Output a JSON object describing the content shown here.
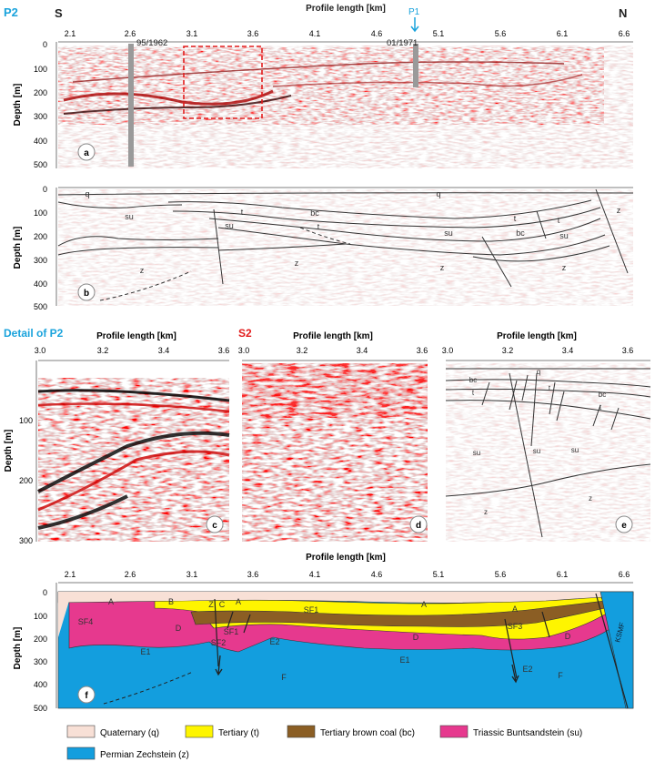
{
  "panel_a": {
    "profile": "P2",
    "south": "S",
    "north": "N",
    "xlabel": "Profile length [km]",
    "ylabel": "Depth [m]",
    "xticks": [
      "2.1",
      "2.6",
      "3.1",
      "3.6",
      "4.1",
      "4.6",
      "5.1",
      "5.6",
      "6.1",
      "6.6"
    ],
    "yticks": [
      "0",
      "100",
      "200",
      "300",
      "400",
      "500"
    ],
    "well1": "95/1962",
    "well2": "01/1971",
    "crossing": "P1",
    "letter": "a"
  },
  "panel_b": {
    "ylabel": "Depth [m]",
    "yticks": [
      "0",
      "100",
      "200",
      "300",
      "400",
      "500"
    ],
    "letter": "b",
    "units": [
      {
        "t": "q",
        "x": 96,
        "y": 216
      },
      {
        "t": "su",
        "x": 142,
        "y": 241
      },
      {
        "t": "su",
        "x": 252,
        "y": 251
      },
      {
        "t": "t",
        "x": 266,
        "y": 236
      },
      {
        "t": "bc",
        "x": 346,
        "y": 237
      },
      {
        "t": "t",
        "x": 350,
        "y": 252
      },
      {
        "t": "su",
        "x": 493,
        "y": 259
      },
      {
        "t": "q",
        "x": 482,
        "y": 216
      },
      {
        "t": "t",
        "x": 566,
        "y": 243
      },
      {
        "t": "bc",
        "x": 572,
        "y": 259
      },
      {
        "t": "t",
        "x": 614,
        "y": 245
      },
      {
        "t": "su",
        "x": 620,
        "y": 262
      },
      {
        "t": "z",
        "x": 680,
        "y": 234
      },
      {
        "t": "z",
        "x": 156,
        "y": 300
      },
      {
        "t": "z",
        "x": 326,
        "y": 292
      },
      {
        "t": "z",
        "x": 486,
        "y": 297
      },
      {
        "t": "z",
        "x": 620,
        "y": 297
      }
    ]
  },
  "panel_c": {
    "title": "Detail of P2",
    "xlabel": "Profile length [km]",
    "ylabel": "Depth [m]",
    "xticks": [
      "3.0",
      "3.2",
      "3.4",
      "3.6"
    ],
    "yticks": [
      "100",
      "200",
      "300"
    ],
    "letter": "c"
  },
  "panel_d": {
    "title": "S2",
    "xlabel": "Profile length [km]",
    "xticks": [
      "3.0",
      "3.2",
      "3.4",
      "3.6"
    ],
    "letter": "d"
  },
  "panel_e": {
    "xlabel": "Profile length [km]",
    "xticks": [
      "3.0",
      "3.2",
      "3.4",
      "3.6"
    ],
    "letter": "e",
    "units": [
      {
        "t": "q",
        "x": 592,
        "y": 411
      },
      {
        "t": "bc",
        "x": 520,
        "y": 420
      },
      {
        "t": "t",
        "x": 520,
        "y": 434
      },
      {
        "t": "t",
        "x": 604,
        "y": 429
      },
      {
        "t": "bc",
        "x": 662,
        "y": 436
      },
      {
        "t": "t",
        "x": 660,
        "y": 450
      },
      {
        "t": "su",
        "x": 524,
        "y": 500
      },
      {
        "t": "su",
        "x": 590,
        "y": 498
      },
      {
        "t": "su",
        "x": 632,
        "y": 497
      },
      {
        "t": "z",
        "x": 649,
        "y": 550
      },
      {
        "t": "z",
        "x": 534,
        "y": 565
      }
    ]
  },
  "panel_f": {
    "xlabel": "Profile length [km]",
    "ylabel": "Depth [m]",
    "xticks": [
      "2.1",
      "2.6",
      "3.1",
      "3.6",
      "4.1",
      "4.6",
      "5.1",
      "5.6",
      "6.1",
      "6.6"
    ],
    "yticks": [
      "0",
      "100",
      "200",
      "300",
      "400",
      "500"
    ],
    "letter": "f",
    "units": [
      {
        "t": "A",
        "x": 122,
        "y": 664
      },
      {
        "t": "B",
        "x": 188,
        "y": 664
      },
      {
        "t": "A",
        "x": 262,
        "y": 664
      },
      {
        "t": "A",
        "x": 466,
        "y": 667
      },
      {
        "t": "A",
        "x": 566,
        "y": 672
      },
      {
        "t": "SF1",
        "x": 342,
        "y": 673
      },
      {
        "t": "SF4",
        "x": 94,
        "y": 686
      },
      {
        "t": "D",
        "x": 196,
        "y": 693
      },
      {
        "t": "SF1",
        "x": 254,
        "y": 697
      },
      {
        "t": "SF3",
        "x": 566,
        "y": 691
      },
      {
        "t": "D",
        "x": 457,
        "y": 703
      },
      {
        "t": "D",
        "x": 624,
        "y": 702
      },
      {
        "t": "E1",
        "x": 160,
        "y": 719
      },
      {
        "t": "E2",
        "x": 302,
        "y": 708
      },
      {
        "t": "E1",
        "x": 445,
        "y": 728
      },
      {
        "t": "E2",
        "x": 580,
        "y": 738
      },
      {
        "t": "F",
        "x": 312,
        "y": 747
      },
      {
        "t": "F",
        "x": 616,
        "y": 745
      },
      {
        "t": "Z",
        "x": 232,
        "y": 667
      },
      {
        "t": "C",
        "x": 244,
        "y": 667
      },
      {
        "t": "SF2",
        "x": 240,
        "y": 709
      }
    ],
    "fault_label": "KSMF"
  },
  "legend": [
    {
      "label": "Quaternary (q)",
      "color": "#f8e0d6"
    },
    {
      "label": "Tertiary (t)",
      "color": "#fef500"
    },
    {
      "label": "Tertiary brown coal (bc)",
      "color": "#8b5e24"
    },
    {
      "label": "Triassic Buntsandstein (su)",
      "color": "#e6398e"
    },
    {
      "label": "Permian Zechstein (z)",
      "color": "#139ede"
    }
  ]
}
